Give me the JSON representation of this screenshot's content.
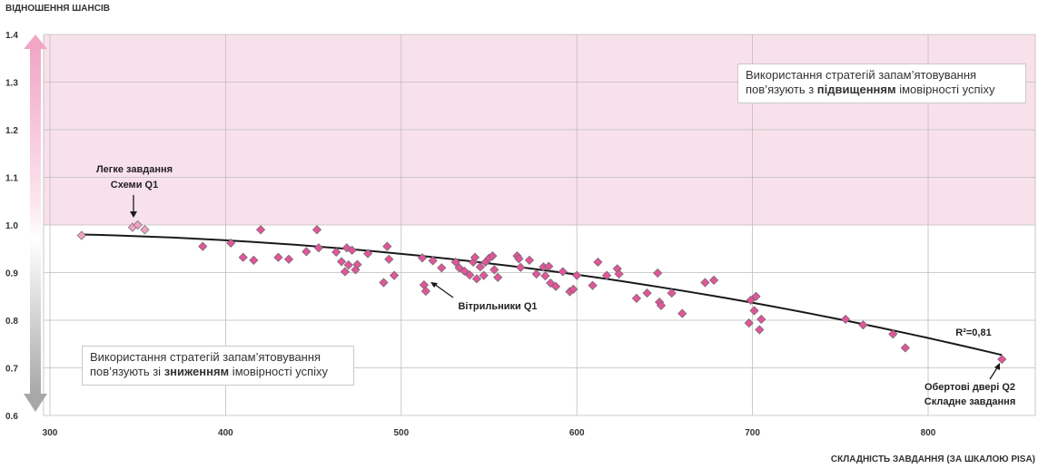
{
  "chart_data": {
    "type": "scatter",
    "ylabel": "ВІДНОШЕННЯ ШАНСІВ",
    "xlabel": "СКЛАДНІСТЬ ЗАВДАННЯ (ЗА ШКАЛОЮ PISA)",
    "xlim": [
      290,
      860
    ],
    "ylim": [
      0.6,
      1.4
    ],
    "x_ticks": [
      "300",
      "400",
      "500",
      "600",
      "700",
      "800"
    ],
    "y_ticks": [
      "0.6",
      "0.7",
      "0.8",
      "0.9",
      "1.0",
      "1.1",
      "1.2",
      "1.3",
      "1.4"
    ],
    "grid": true,
    "highlight_band": {
      "from": 1.0,
      "to": 1.4,
      "color": "#f9e1ec"
    },
    "arrow_colors": {
      "top": "#f1a6c6",
      "bottom": "#a8a8a8"
    },
    "marker_color": "#e2559a",
    "marker_light_color": "#f0a3c4",
    "trendline": {
      "start": [
        318,
        0.98
      ],
      "mid": [
        620,
        0.885
      ],
      "end": [
        842,
        0.727
      ],
      "r2_label": "R²=0,81"
    },
    "points": [
      [
        318,
        0.978
      ],
      [
        347,
        0.995
      ],
      [
        350,
        1.0
      ],
      [
        354,
        0.99
      ],
      [
        387,
        0.955
      ],
      [
        403,
        0.962
      ],
      [
        410,
        0.932
      ],
      [
        416,
        0.926
      ],
      [
        420,
        0.99
      ],
      [
        430,
        0.932
      ],
      [
        436,
        0.928
      ],
      [
        446,
        0.944
      ],
      [
        452,
        0.99
      ],
      [
        453,
        0.952
      ],
      [
        463,
        0.943
      ],
      [
        466,
        0.923
      ],
      [
        468,
        0.902
      ],
      [
        469,
        0.952
      ],
      [
        470,
        0.916
      ],
      [
        472,
        0.947
      ],
      [
        474,
        0.906
      ],
      [
        475,
        0.917
      ],
      [
        481,
        0.94
      ],
      [
        490,
        0.879
      ],
      [
        492,
        0.955
      ],
      [
        493,
        0.928
      ],
      [
        496,
        0.894
      ],
      [
        512,
        0.931
      ],
      [
        513,
        0.874
      ],
      [
        514,
        0.861
      ],
      [
        518,
        0.925
      ],
      [
        523,
        0.91
      ],
      [
        531,
        0.922
      ],
      [
        533,
        0.91
      ],
      [
        536,
        0.903
      ],
      [
        539,
        0.895
      ],
      [
        541,
        0.922
      ],
      [
        542,
        0.932
      ],
      [
        543,
        0.887
      ],
      [
        545,
        0.912
      ],
      [
        547,
        0.894
      ],
      [
        548,
        0.922
      ],
      [
        550,
        0.93
      ],
      [
        552,
        0.935
      ],
      [
        553,
        0.906
      ],
      [
        555,
        0.89
      ],
      [
        566,
        0.935
      ],
      [
        567,
        0.929
      ],
      [
        568,
        0.911
      ],
      [
        573,
        0.926
      ],
      [
        577,
        0.897
      ],
      [
        581,
        0.912
      ],
      [
        582,
        0.893
      ],
      [
        584,
        0.913
      ],
      [
        585,
        0.878
      ],
      [
        588,
        0.871
      ],
      [
        592,
        0.902
      ],
      [
        596,
        0.86
      ],
      [
        598,
        0.865
      ],
      [
        600,
        0.894
      ],
      [
        609,
        0.873
      ],
      [
        612,
        0.922
      ],
      [
        617,
        0.894
      ],
      [
        623,
        0.908
      ],
      [
        624,
        0.897
      ],
      [
        634,
        0.846
      ],
      [
        640,
        0.857
      ],
      [
        646,
        0.899
      ],
      [
        647,
        0.838
      ],
      [
        648,
        0.831
      ],
      [
        654,
        0.857
      ],
      [
        660,
        0.814
      ],
      [
        673,
        0.879
      ],
      [
        678,
        0.884
      ],
      [
        698,
        0.794
      ],
      [
        699,
        0.842
      ],
      [
        701,
        0.82
      ],
      [
        702,
        0.85
      ],
      [
        704,
        0.78
      ],
      [
        705,
        0.802
      ],
      [
        753,
        0.802
      ],
      [
        763,
        0.79
      ],
      [
        780,
        0.771
      ],
      [
        787,
        0.742
      ],
      [
        842,
        0.718
      ]
    ],
    "light_points_count": 4,
    "annotations": {
      "easy_title": "Легке завдання",
      "easy_sub": "Схеми Q1",
      "fans": "Вітрильники Q1",
      "door_title": "Обертові двері Q2",
      "door_sub": "Складне завдання"
    }
  },
  "info_top": {
    "line1": "Використання стратегій запам’ятовування",
    "line2_prefix": "пов’язують з ",
    "line2_bold": "підвищенням",
    "line2_suffix": " імовірності успіху"
  },
  "info_bottom": {
    "line1": "Використання стратегій запам’ятовування",
    "line2_prefix": "пов’язують зі ",
    "line2_bold": "зниженням",
    "line2_suffix": " імовірності успіху"
  }
}
